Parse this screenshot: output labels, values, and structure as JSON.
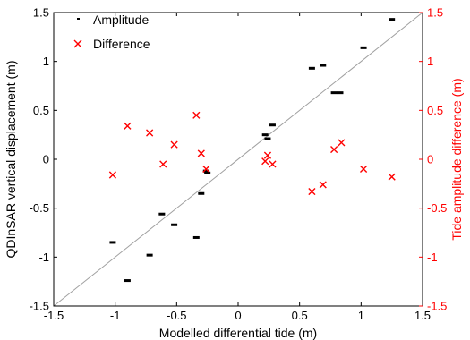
{
  "chart_data": {
    "type": "scatter",
    "xlabel": "Modelled differential tide (m)",
    "ylabel_left": "QDInSAR vertical displacement (m)",
    "ylabel_right": "Tide amplitude difference (m)",
    "xlim": [
      -1.5,
      1.5
    ],
    "ylim_left": [
      -1.5,
      1.5
    ],
    "ylim_right": [
      -1.5,
      1.5
    ],
    "x_ticks": [
      "-1.5",
      "-1",
      "-0.5",
      "0",
      "0.5",
      "1",
      "1.5"
    ],
    "y_ticks_left": [
      "-1.5",
      "-1",
      "-0.5",
      "0",
      "0.5",
      "1",
      "1.5"
    ],
    "y_ticks_right": [
      "-1.5",
      "-1",
      "-0.5",
      "0",
      "0.5",
      "1",
      "1.5"
    ],
    "grid": false,
    "legend_position": "top-left",
    "reference_line": {
      "slope": 1,
      "intercept": 0,
      "color": "#a0a0a0"
    },
    "colors": {
      "amplitude": "#000000",
      "difference": "#ff0000",
      "right_axis": "#ff0000",
      "reference": "#a0a0a0"
    },
    "series": [
      {
        "name": "Amplitude",
        "axis": "left",
        "marker": "dash",
        "x": [
          -1.02,
          -0.9,
          -0.72,
          -0.62,
          -0.52,
          -0.34,
          -0.3,
          -0.26,
          -0.25,
          0.22,
          0.24,
          0.28,
          0.6,
          0.69,
          0.78,
          0.83,
          1.02,
          1.25
        ],
        "y": [
          -0.85,
          -1.24,
          -0.98,
          -0.56,
          -0.67,
          -0.8,
          -0.35,
          -0.12,
          -0.14,
          0.25,
          0.21,
          0.35,
          0.93,
          0.96,
          0.68,
          0.68,
          1.14,
          1.43
        ]
      },
      {
        "name": "Difference",
        "axis": "right",
        "marker": "x",
        "x": [
          -1.02,
          -0.9,
          -0.72,
          -0.61,
          -0.52,
          -0.34,
          -0.3,
          -0.26,
          0.22,
          0.24,
          0.28,
          0.6,
          0.69,
          0.78,
          0.84,
          1.02,
          1.25
        ],
        "y": [
          -0.16,
          0.34,
          0.27,
          -0.05,
          0.15,
          0.45,
          0.06,
          -0.1,
          -0.02,
          0.04,
          -0.05,
          -0.33,
          -0.26,
          0.1,
          0.17,
          -0.1,
          -0.18
        ]
      }
    ]
  }
}
